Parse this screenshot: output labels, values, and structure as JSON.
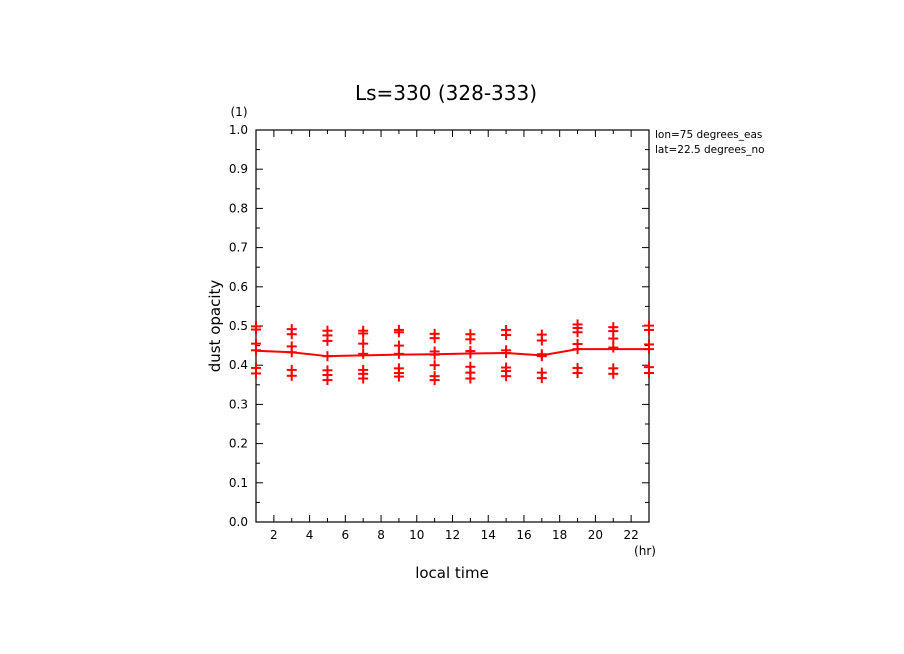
{
  "chart_data": {
    "type": "line",
    "title": "Ls=330 (328-333)",
    "xlabel": "local time",
    "xunit": "(hr)",
    "ylabel": "dust opacity",
    "yunit": "(1)",
    "xlim": [
      1,
      23
    ],
    "ylim": [
      0.0,
      1.0
    ],
    "x_ticks": [
      2,
      4,
      6,
      8,
      10,
      12,
      14,
      16,
      18,
      20,
      22
    ],
    "y_ticks": [
      "0.0",
      "0.1",
      "0.2",
      "0.3",
      "0.4",
      "0.5",
      "0.6",
      "0.7",
      "0.8",
      "0.9",
      "1.0"
    ],
    "annotations": [
      "lon=75 degrees_eas",
      "lat=22.5 degrees_no"
    ],
    "color": "#ff0000",
    "series": [
      {
        "kind": "line",
        "x": [
          1,
          3,
          5,
          7,
          9,
          11,
          13,
          15,
          17,
          19,
          21,
          23
        ],
        "y": [
          0.437,
          0.433,
          0.423,
          0.425,
          0.427,
          0.428,
          0.43,
          0.431,
          0.425,
          0.441,
          0.441,
          0.441
        ]
      },
      {
        "kind": "points",
        "x": [
          1,
          3,
          5,
          7,
          9,
          11,
          13,
          15,
          17,
          19,
          21,
          23
        ],
        "y": [
          [
            0.379,
            0.393,
            0.438,
            0.455,
            0.491,
            0.499
          ],
          [
            0.373,
            0.388,
            0.433,
            0.448,
            0.479,
            0.492
          ],
          [
            0.362,
            0.375,
            0.387,
            0.423,
            0.462,
            0.476,
            0.488
          ],
          [
            0.366,
            0.378,
            0.388,
            0.429,
            0.455,
            0.481,
            0.488
          ],
          [
            0.371,
            0.38,
            0.392,
            0.429,
            0.45,
            0.484,
            0.49
          ],
          [
            0.362,
            0.372,
            0.4,
            0.427,
            0.435,
            0.469,
            0.48
          ],
          [
            0.366,
            0.381,
            0.396,
            0.43,
            0.436,
            0.466,
            0.479
          ],
          [
            0.372,
            0.385,
            0.394,
            0.431,
            0.438,
            0.477,
            0.49
          ],
          [
            0.367,
            0.381,
            0.423,
            0.428,
            0.463,
            0.478
          ],
          [
            0.38,
            0.393,
            0.441,
            0.454,
            0.484,
            0.495,
            0.504
          ],
          [
            0.378,
            0.392,
            0.445,
            0.468,
            0.487,
            0.497
          ],
          [
            0.38,
            0.395,
            0.441,
            0.453,
            0.49,
            0.501
          ]
        ]
      }
    ]
  }
}
